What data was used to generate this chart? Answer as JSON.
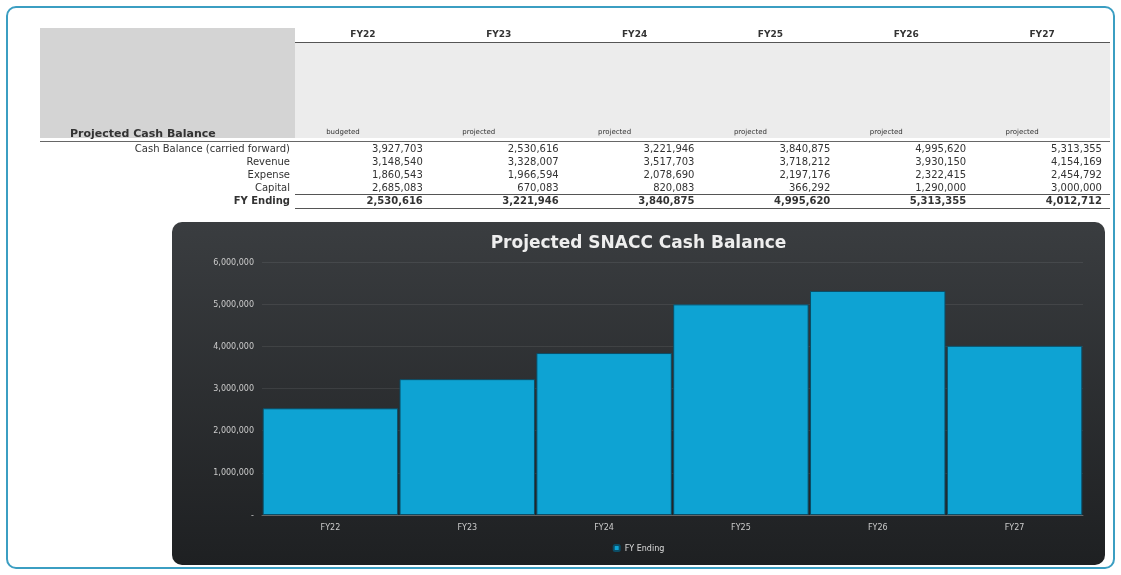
{
  "chart_data": [
    {
      "type": "other",
      "title": "Projected Cash Balance",
      "categories": [
        "FY22",
        "FY23",
        "FY24",
        "FY25",
        "FY26",
        "FY27"
      ],
      "annotations": [
        "budgeted",
        "projected",
        "projected",
        "projected",
        "projected",
        "projected"
      ],
      "series": [
        {
          "name": "Cash Balance (carried forward)",
          "values": [
            3927703,
            2530616,
            3221946,
            3840875,
            4995620,
            5313355
          ],
          "value_labels": [
            "3,927,703",
            "2,530,616",
            "3,221,946",
            "3,840,875",
            "4,995,620",
            "5,313,355"
          ]
        },
        {
          "name": "Revenue",
          "values": [
            3148540,
            3328007,
            3517703,
            3718212,
            3930150,
            4154169
          ],
          "value_labels": [
            "3,148,540",
            "3,328,007",
            "3,517,703",
            "3,718,212",
            "3,930,150",
            "4,154,169"
          ]
        },
        {
          "name": "Expense",
          "values": [
            1860543,
            1966594,
            2078690,
            2197176,
            2322415,
            2454792
          ],
          "value_labels": [
            "1,860,543",
            "1,966,594",
            "2,078,690",
            "2,197,176",
            "2,322,415",
            "2,454,792"
          ]
        },
        {
          "name": "Capital",
          "values": [
            2685083,
            670083,
            820083,
            366292,
            1290000,
            3000000
          ],
          "value_labels": [
            "2,685,083",
            "670,083",
            "820,083",
            "366,292",
            "1,290,000",
            "3,000,000"
          ]
        },
        {
          "name": "FY Ending",
          "values": [
            2530616,
            3221946,
            3840875,
            4995620,
            5313355,
            4012712
          ],
          "value_labels": [
            "2,530,616",
            "3,221,946",
            "3,840,875",
            "4,995,620",
            "5,313,355",
            "4,012,712"
          ]
        }
      ]
    },
    {
      "type": "bar",
      "title": "Projected SNACC Cash Balance",
      "categories": [
        "FY22",
        "FY23",
        "FY24",
        "FY25",
        "FY26",
        "FY27"
      ],
      "series": [
        {
          "name": "FY Ending",
          "color": "#0ea3d3",
          "values": [
            2530616,
            3221946,
            3840875,
            4995620,
            5313355,
            4012712
          ]
        }
      ],
      "ylim": [
        0,
        6000000
      ],
      "yticks": [
        {
          "value": 0,
          "label": "-"
        },
        {
          "value": 1000000,
          "label": "1,000,000"
        },
        {
          "value": 2000000,
          "label": "2,000,000"
        },
        {
          "value": 3000000,
          "label": "3,000,000"
        },
        {
          "value": 4000000,
          "label": "4,000,000"
        },
        {
          "value": 5000000,
          "label": "5,000,000"
        },
        {
          "value": 6000000,
          "label": "6,000,000"
        }
      ],
      "grid": "y",
      "legend": "bottom"
    }
  ]
}
